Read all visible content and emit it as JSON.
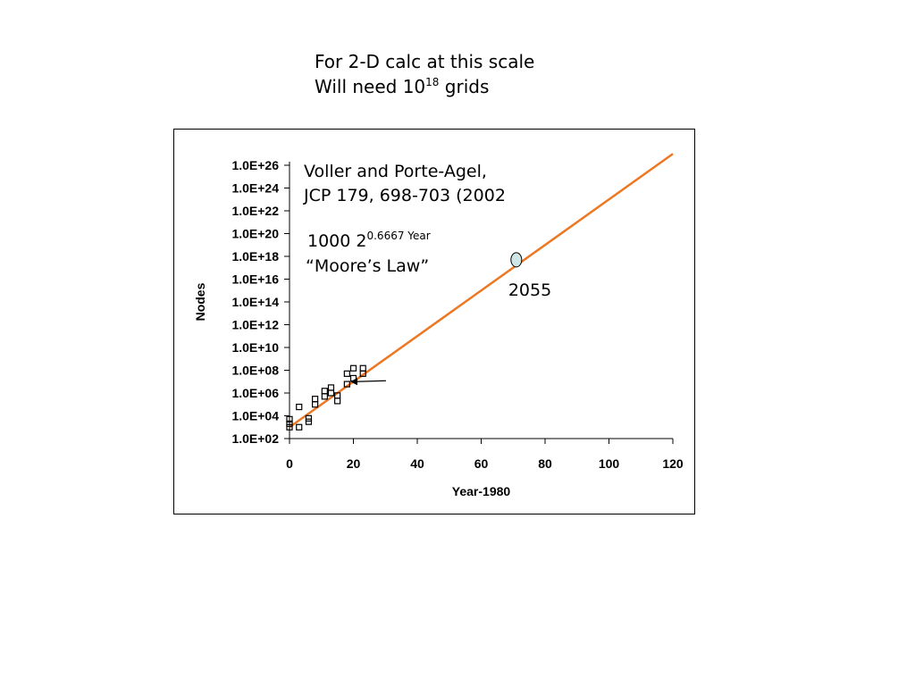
{
  "heading": {
    "line1": "For 2-D calc at this scale",
    "line2_prefix": "Will need 10",
    "line2_exponent": "18",
    "line2_suffix": " grids"
  },
  "chart_data": {
    "type": "scatter",
    "xlabel": "Year-1980",
    "ylabel": "Nodes",
    "xlim": [
      0,
      120
    ],
    "ylim_log10": [
      2,
      26
    ],
    "y_scale": "log",
    "grid": false,
    "x_ticks": [
      "0",
      "20",
      "40",
      "60",
      "80",
      "100",
      "120"
    ],
    "y_ticks": [
      "1.0E+02",
      "1.0E+04",
      "1.0E+06",
      "1.0E+08",
      "1.0E+10",
      "1.0E+12",
      "1.0E+14",
      "1.0E+16",
      "1.0E+18",
      "1.0E+20",
      "1.0E+22",
      "1.0E+24",
      "1.0E+26"
    ],
    "trend": {
      "formula_base": "1000 2",
      "formula_exponent": "0.6667 Year",
      "label": "“Moore’s Law”",
      "y_at_x0": 1000,
      "y_at_x120": 1e+27,
      "color": "#ee7722"
    },
    "citation": {
      "line1": "Voller and Porte-Agel,",
      "line2": "JCP 179, 698-703 (2002"
    },
    "highlight": {
      "label": "2055",
      "x": 71,
      "y": 5e+17,
      "color": "#cfe6e6"
    },
    "points": [
      {
        "x": 0,
        "y": 2000.0
      },
      {
        "x": 0,
        "y": 5000.0
      },
      {
        "x": 0,
        "y": 1000.0
      },
      {
        "x": 3,
        "y": 1000.0
      },
      {
        "x": 3,
        "y": 60000.0
      },
      {
        "x": 6,
        "y": 3000.0
      },
      {
        "x": 6,
        "y": 6000.0
      },
      {
        "x": 8,
        "y": 100000.0
      },
      {
        "x": 8,
        "y": 300000.0
      },
      {
        "x": 11,
        "y": 500000.0
      },
      {
        "x": 11,
        "y": 1500000.0
      },
      {
        "x": 13,
        "y": 1000000.0
      },
      {
        "x": 13,
        "y": 3000000.0
      },
      {
        "x": 15,
        "y": 200000.0
      },
      {
        "x": 15,
        "y": 600000.0
      },
      {
        "x": 18,
        "y": 6000000.0
      },
      {
        "x": 18,
        "y": 50000000.0
      },
      {
        "x": 20,
        "y": 20000000.0
      },
      {
        "x": 20,
        "y": 150000000.0
      },
      {
        "x": 23,
        "y": 50000000.0
      },
      {
        "x": 23,
        "y": 150000000.0
      }
    ],
    "arrow_target": {
      "x": 19,
      "y": 10000000.0
    }
  }
}
